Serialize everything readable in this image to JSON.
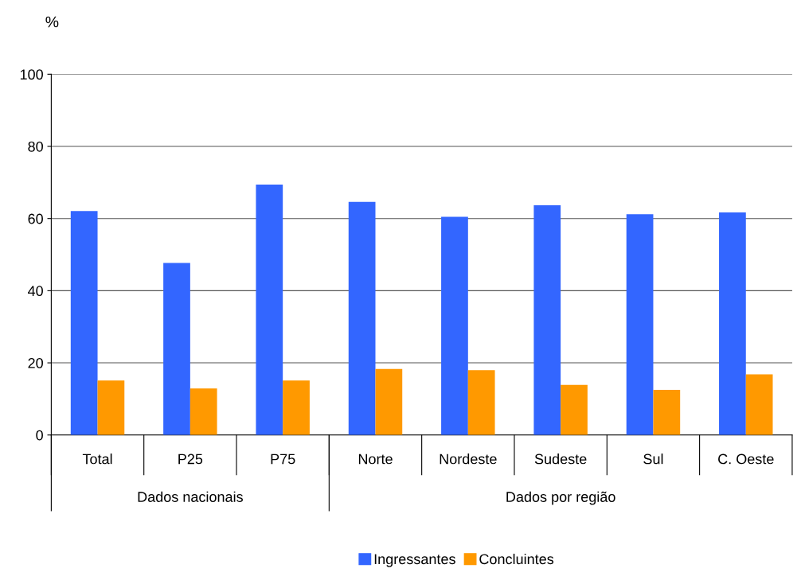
{
  "chart_data": {
    "type": "bar",
    "ylabel": "%",
    "categories": [
      "Total",
      "P25",
      "P75",
      "Norte",
      "Nordeste",
      "Sudeste",
      "Sul",
      "C. Oeste"
    ],
    "series": [
      {
        "name": "Ingressantes",
        "color": "#3366ff",
        "values": [
          62.1,
          47.7,
          69.4,
          64.6,
          60.5,
          63.7,
          61.2,
          61.7
        ]
      },
      {
        "name": "Concluintes",
        "color": "#ff9900",
        "values": [
          15.1,
          12.9,
          15.1,
          18.3,
          18.0,
          13.9,
          12.5,
          16.8
        ]
      }
    ],
    "ylim": [
      0,
      100
    ],
    "yticks": [
      0,
      20,
      40,
      60,
      80,
      100
    ],
    "grid": "y",
    "legend": "bottom",
    "annotations": [
      "Dados nacionais",
      "Dados por região"
    ]
  }
}
